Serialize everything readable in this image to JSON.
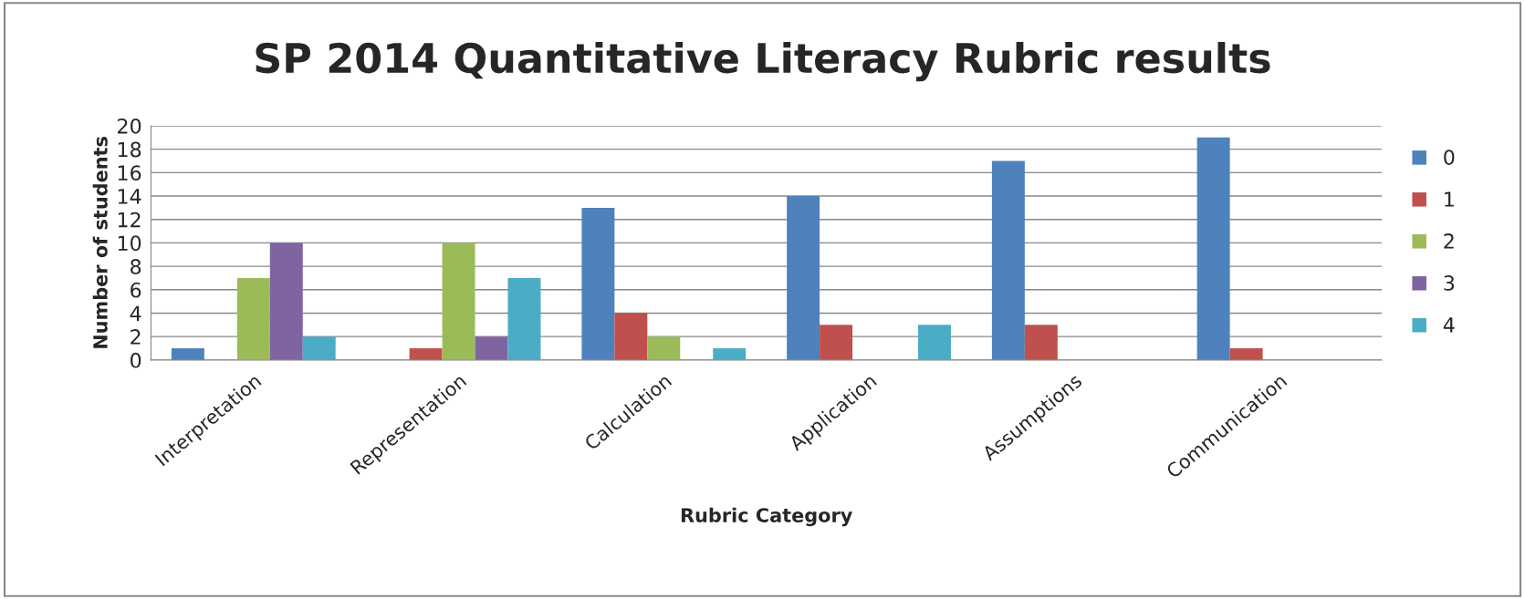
{
  "chart_data": {
    "type": "bar",
    "title": "SP 2014 Quantitative Literacy Rubric results",
    "xlabel": "Rubric Category",
    "ylabel": "Number of students",
    "categories": [
      "Interpretation",
      "Representation",
      "Calculation",
      "Application",
      "Assumptions",
      "Communication"
    ],
    "series": [
      {
        "name": "0",
        "color": "#4f81bd",
        "values": [
          1,
          0,
          13,
          14,
          17,
          19
        ]
      },
      {
        "name": "1",
        "color": "#c0504d",
        "values": [
          0,
          1,
          4,
          3,
          3,
          1
        ]
      },
      {
        "name": "2",
        "color": "#9bbb59",
        "values": [
          7,
          10,
          2,
          0,
          0,
          0
        ]
      },
      {
        "name": "3",
        "color": "#8064a2",
        "values": [
          10,
          2,
          0,
          0,
          0,
          0
        ]
      },
      {
        "name": "4",
        "color": "#4bacc6",
        "values": [
          2,
          7,
          1,
          3,
          0,
          0
        ]
      }
    ],
    "ylim": [
      0,
      20
    ],
    "yticks": [
      0,
      2,
      4,
      6,
      8,
      10,
      12,
      14,
      16,
      18,
      20
    ],
    "grid": "y",
    "legend": "right"
  }
}
